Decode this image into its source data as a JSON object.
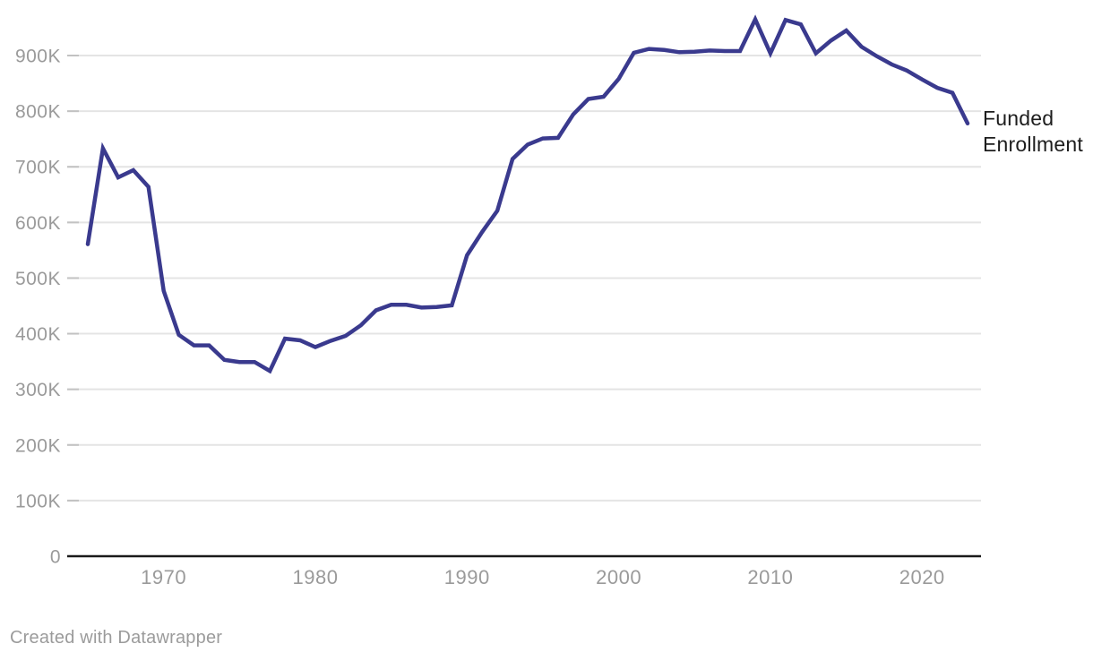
{
  "chart": {
    "annotation": "Funded Enrollment",
    "credit": "Created with Datawrapper"
  },
  "chart_data": {
    "type": "line",
    "title": "",
    "xlabel": "",
    "ylabel": "",
    "grid": true,
    "legend_position": "right-of-line-end",
    "xlim": [
      1965,
      2023
    ],
    "ylim": [
      0,
      970000
    ],
    "series": [
      {
        "name": "Funded Enrollment",
        "x": [
          1965,
          1966,
          1967,
          1968,
          1969,
          1970,
          1971,
          1972,
          1973,
          1974,
          1975,
          1976,
          1977,
          1978,
          1979,
          1980,
          1981,
          1982,
          1983,
          1984,
          1985,
          1986,
          1987,
          1988,
          1989,
          1990,
          1991,
          1992,
          1993,
          1994,
          1995,
          1996,
          1997,
          1998,
          1999,
          2000,
          2001,
          2002,
          2003,
          2004,
          2005,
          2006,
          2007,
          2008,
          2009,
          2010,
          2011,
          2012,
          2013,
          2014,
          2015,
          2016,
          2017,
          2018,
          2019,
          2020,
          2021,
          2022,
          2023
        ],
        "values": [
          561000,
          733000,
          681000,
          694000,
          664000,
          477000,
          398000,
          379000,
          379000,
          353000,
          349000,
          349000,
          333000,
          391000,
          388000,
          376000,
          387000,
          396000,
          415000,
          442000,
          452000,
          452000,
          447000,
          448000,
          451000,
          541000,
          583000,
          621000,
          714000,
          740000,
          751000,
          752000,
          794000,
          822000,
          826000,
          858000,
          905000,
          912000,
          910000,
          906000,
          907000,
          909000,
          908000,
          908000,
          965000,
          904000,
          964000,
          956000,
          904000,
          927000,
          945000,
          916000,
          899000,
          884000,
          873000,
          857000,
          842000,
          833000,
          778000
        ]
      }
    ],
    "y_ticks": [
      {
        "value": 0,
        "label": "0"
      },
      {
        "value": 100000,
        "label": "100K"
      },
      {
        "value": 200000,
        "label": "200K"
      },
      {
        "value": 300000,
        "label": "300K"
      },
      {
        "value": 400000,
        "label": "400K"
      },
      {
        "value": 500000,
        "label": "500K"
      },
      {
        "value": 600000,
        "label": "600K"
      },
      {
        "value": 700000,
        "label": "700K"
      },
      {
        "value": 800000,
        "label": "800K"
      },
      {
        "value": 900000,
        "label": "900K"
      }
    ],
    "x_ticks": [
      {
        "value": 1970,
        "label": "1970"
      },
      {
        "value": 1980,
        "label": "1980"
      },
      {
        "value": 1990,
        "label": "1990"
      },
      {
        "value": 2000,
        "label": "2000"
      },
      {
        "value": 2010,
        "label": "2010"
      },
      {
        "value": 2020,
        "label": "2020"
      }
    ]
  },
  "colors": {
    "line": "#3a3a8e",
    "gridline": "#e4e4e4",
    "tick_dash": "#c2c2c2",
    "axis": "#1a1a1a",
    "tick_label": "#9a9a9a",
    "annotation_text": "#1d1d1d",
    "credit_text": "#9b9b9b"
  }
}
